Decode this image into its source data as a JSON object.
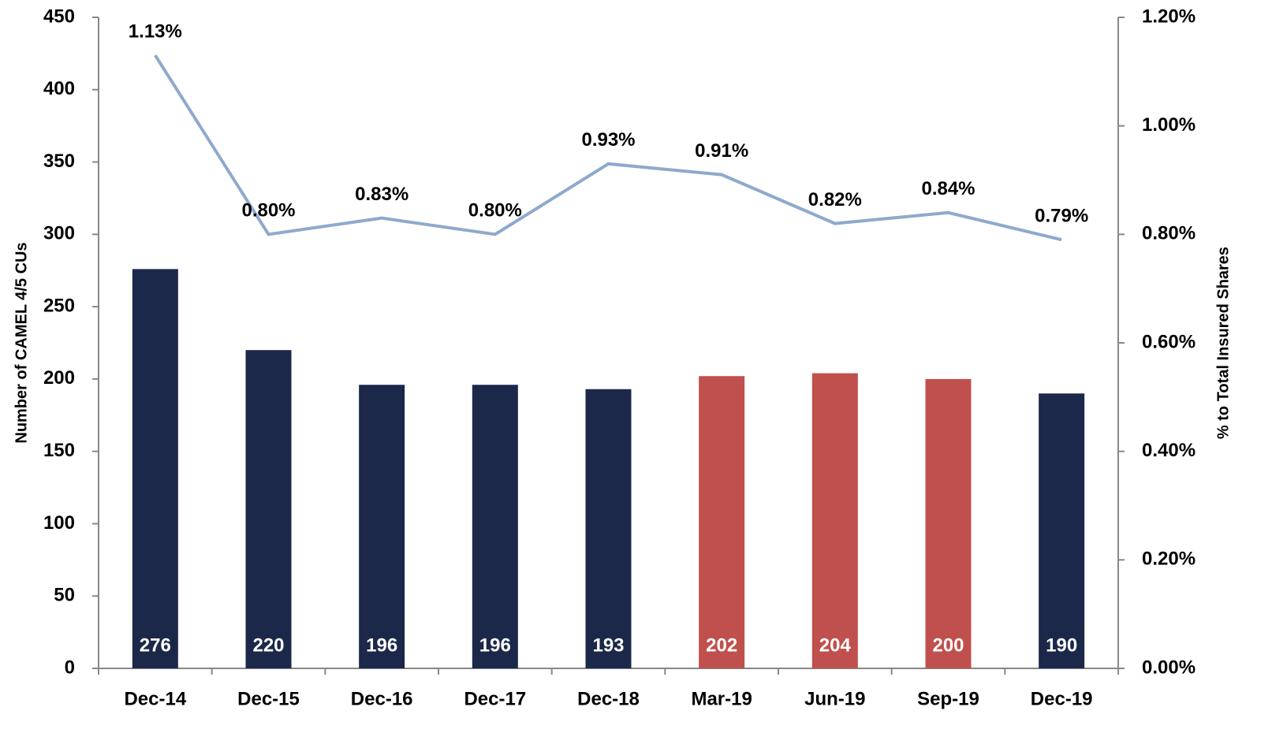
{
  "chart_data": {
    "type": "bar",
    "y_label": "Number of CAMEL 4/5 CUs",
    "y2_label": "% to Total Insured Shares",
    "categories": [
      "Dec-14",
      "Dec-15",
      "Dec-16",
      "Dec-17",
      "Dec-18",
      "Mar-19",
      "Jun-19",
      "Sep-19",
      "Dec-19"
    ],
    "series": [
      {
        "type": "bar",
        "values": [
          276,
          220,
          196,
          196,
          193,
          202,
          204,
          200,
          190
        ],
        "colors": [
          "#1b2849",
          "#1b2849",
          "#1b2849",
          "#1b2849",
          "#1b2849",
          "#c0504d",
          "#c0504d",
          "#c0504d",
          "#1b2849"
        ]
      },
      {
        "type": "line",
        "axis": "y2",
        "color": "#8ea9cc",
        "values": [
          1.13,
          0.8,
          0.83,
          0.8,
          0.93,
          0.91,
          0.82,
          0.84,
          0.79
        ],
        "value_labels": [
          "1.13%",
          "0.80%",
          "0.83%",
          "0.80%",
          "0.93%",
          "0.91%",
          "0.82%",
          "0.84%",
          "0.79%"
        ]
      }
    ],
    "ylim": [
      0,
      450
    ],
    "yticks": [
      0,
      50,
      100,
      150,
      200,
      250,
      300,
      350,
      400,
      450
    ],
    "y2lim": [
      0,
      1.2
    ],
    "y2ticks": [
      {
        "value": 0,
        "label": "0.00%"
      },
      {
        "value": 0.2,
        "label": "0.20%"
      },
      {
        "value": 0.4,
        "label": "0.40%"
      },
      {
        "value": 0.6,
        "label": "0.60%"
      },
      {
        "value": 0.8,
        "label": "0.80%"
      },
      {
        "value": 1.0,
        "label": "1.00%"
      },
      {
        "value": 1.2,
        "label": "1.20%"
      }
    ],
    "grid": false
  }
}
